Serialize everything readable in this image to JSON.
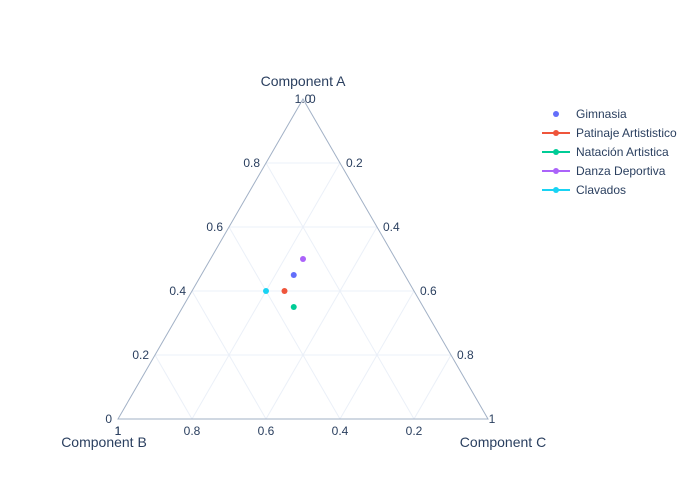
{
  "chart_data": {
    "type": "scatter",
    "subtype": "ternary",
    "axes": {
      "a": {
        "title": "Component A",
        "ticks": [
          "0",
          "0.2",
          "0.4",
          "0.6",
          "0.8",
          "1.0"
        ]
      },
      "b": {
        "title": "Component B",
        "ticks": [
          "0",
          "0.2",
          "0.4",
          "0.6",
          "0.8",
          "1"
        ]
      },
      "c": {
        "title": "Component C",
        "ticks": [
          "0",
          "0.2",
          "0.4",
          "0.6",
          "0.8",
          "1"
        ]
      }
    },
    "grid": true,
    "legend_position": "top-right",
    "series": [
      {
        "name": "Gimnasia",
        "a": 0.45,
        "b": 0.3,
        "c": 0.25,
        "color": "#636efa",
        "marker_only": true
      },
      {
        "name": "Patinaje Artististico",
        "a": 0.4,
        "b": 0.35,
        "c": 0.25,
        "color": "#ef553b",
        "marker_only": false
      },
      {
        "name": "Natación Artistica",
        "a": 0.35,
        "b": 0.35,
        "c": 0.3,
        "color": "#00cc96",
        "marker_only": false
      },
      {
        "name": "Danza Deportiva",
        "a": 0.5,
        "b": 0.25,
        "c": 0.25,
        "color": "#ab63fa",
        "marker_only": false
      },
      {
        "name": "Clavados",
        "a": 0.4,
        "b": 0.4,
        "c": 0.2,
        "color": "#19d3f3",
        "marker_only": false
      }
    ]
  }
}
